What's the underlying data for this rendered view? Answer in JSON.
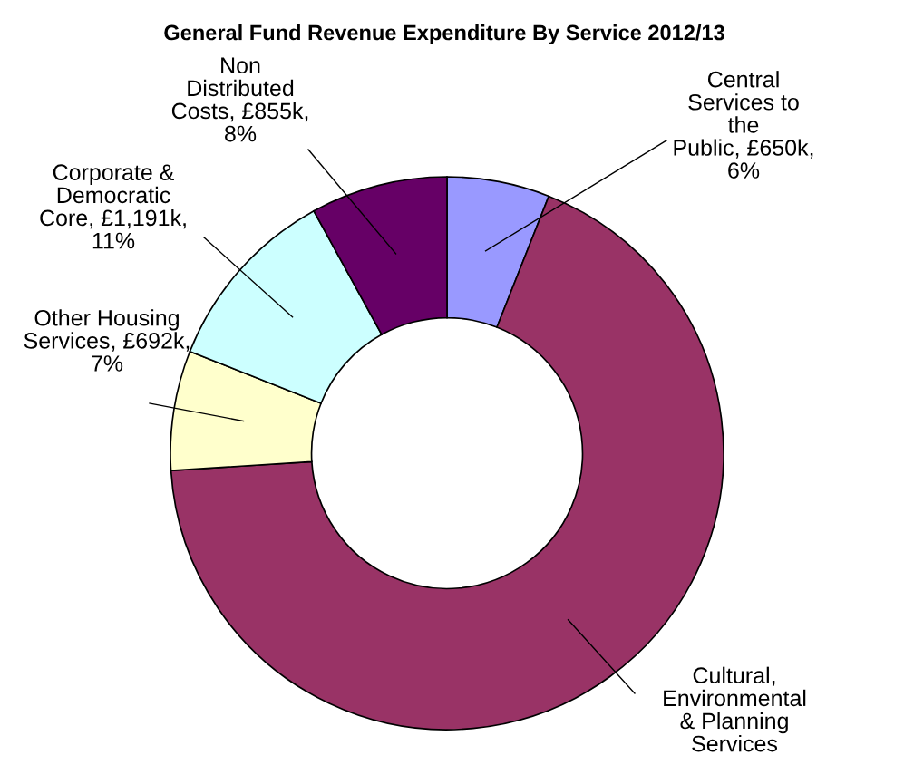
{
  "chart_data": {
    "type": "donut",
    "title": "General Fund Revenue Expenditure By Service 2012/13",
    "categories": [
      "Central Services to the Public",
      "Cultural, Environmental & Planning Services",
      "Other Housing Services",
      "Corporate & Democratic Core",
      "Non Distributed Costs"
    ],
    "values": [
      6,
      68,
      7,
      11,
      8
    ],
    "colors": [
      "#9999ff",
      "#993366",
      "#ffffcc",
      "#ccffff",
      "#660066"
    ],
    "value_labels": [
      "£650k, 6%",
      null,
      "£692k, 7%",
      "£1,191k, 11%",
      "£855k, 8%"
    ]
  }
}
